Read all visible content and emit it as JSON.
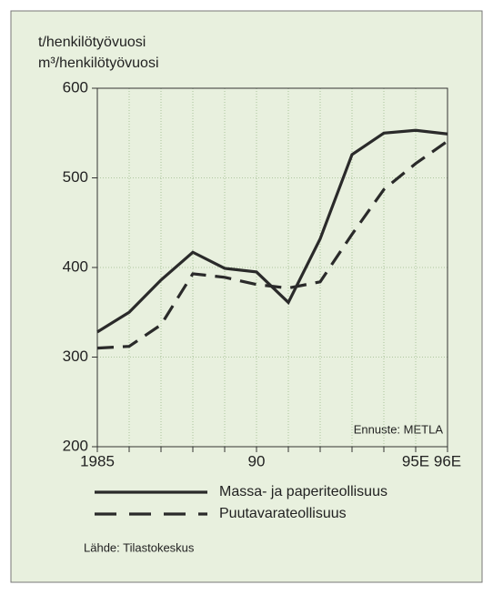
{
  "chart_data": {
    "type": "line",
    "y_axis_label": [
      "t/henkilötyövuosi",
      "m³/henkilötyövuosi"
    ],
    "categories": [
      "1985",
      null,
      null,
      null,
      null,
      "90",
      null,
      null,
      null,
      null,
      "95E",
      "96E"
    ],
    "series": [
      {
        "name": "Massa- ja paperiteollisuus",
        "color": "#2a2a2a",
        "dash": "solid",
        "values": [
          328,
          350,
          386,
          417,
          399,
          395,
          361,
          432,
          526,
          550,
          553,
          549
        ]
      },
      {
        "name": "Puutavarateollisuus",
        "color": "#2a2a2a",
        "dash": "dashed",
        "values": [
          310,
          312,
          336,
          393,
          389,
          381,
          377,
          384,
          437,
          487,
          516,
          541
        ]
      }
    ],
    "ylim": [
      200,
      600
    ],
    "yticks": [
      200,
      300,
      400,
      500,
      600
    ],
    "grid": true,
    "annotation": "Ennuste: METLA",
    "source": "Lähde: Tilastokeskus"
  }
}
